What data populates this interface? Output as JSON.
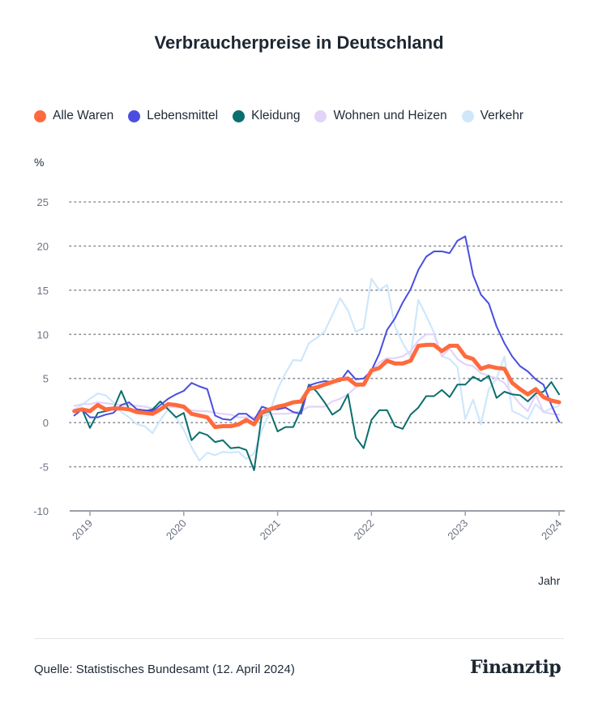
{
  "chart_data": {
    "type": "line",
    "title": "Verbraucherpreise in Deutschland",
    "ylabel": "%",
    "xlabel": "Jahr",
    "ylim": [
      -10,
      25
    ],
    "yticks": [
      25,
      20,
      15,
      10,
      5,
      0,
      -5,
      -10
    ],
    "xticks": [
      "2019",
      "2020",
      "2021",
      "2022",
      "2023",
      "2024"
    ],
    "grid": true,
    "legend_position": "top",
    "x": [
      "2018-11",
      "2018-12",
      "2019-01",
      "2019-02",
      "2019-03",
      "2019-04",
      "2019-05",
      "2019-06",
      "2019-07",
      "2019-08",
      "2019-09",
      "2019-10",
      "2019-11",
      "2019-12",
      "2020-01",
      "2020-02",
      "2020-03",
      "2020-04",
      "2020-05",
      "2020-06",
      "2020-07",
      "2020-08",
      "2020-09",
      "2020-10",
      "2020-11",
      "2020-12",
      "2021-01",
      "2021-02",
      "2021-03",
      "2021-04",
      "2021-05",
      "2021-06",
      "2021-07",
      "2021-08",
      "2021-09",
      "2021-10",
      "2021-11",
      "2021-12",
      "2022-01",
      "2022-02",
      "2022-03",
      "2022-04",
      "2022-05",
      "2022-06",
      "2022-07",
      "2022-08",
      "2022-09",
      "2022-10",
      "2022-11",
      "2022-12",
      "2023-01",
      "2023-02",
      "2023-03",
      "2023-04",
      "2023-05",
      "2023-06",
      "2023-07",
      "2023-08",
      "2023-09",
      "2023-10",
      "2023-11",
      "2023-12",
      "2024-01"
    ],
    "series": [
      {
        "name": "Verkehr",
        "color": "#cfe7fb",
        "width": 2.2,
        "values": [
          1.5,
          2.0,
          2.7,
          3.3,
          3.1,
          2.3,
          1.2,
          0.6,
          -0.2,
          -0.4,
          -1.2,
          0.3,
          1.5,
          0.6,
          -0.8,
          -2.8,
          -4.3,
          -3.4,
          -3.7,
          -3.3,
          -3.4,
          -3.3,
          -4.1,
          -3.5,
          -0.8,
          1.2,
          3.8,
          5.6,
          7.1,
          7.0,
          9.0,
          9.6,
          10.3,
          12.2,
          14.1,
          12.7,
          10.3,
          10.7,
          16.3,
          15.0,
          15.6,
          10.9,
          9.0,
          7.5,
          13.9,
          12.1,
          10.2,
          7.5,
          7.2,
          6.3,
          0.4,
          2.6,
          -0.2,
          3.8,
          5.0,
          7.5,
          1.3,
          0.9,
          0.4,
          2.1,
          1.2,
          1.6,
          1.9
        ]
      },
      {
        "name": "Wohnen und Heizen",
        "color": "#e2d3fb",
        "width": 2.2,
        "values": [
          1.9,
          2.1,
          2.1,
          2.3,
          2.2,
          2.1,
          2.0,
          2.0,
          1.9,
          1.8,
          1.6,
          1.5,
          1.7,
          1.8,
          1.6,
          1.4,
          1.3,
          1.3,
          1.1,
          1.0,
          0.9,
          0.6,
          0.6,
          0.6,
          0.7,
          1.0,
          1.0,
          1.0,
          1.1,
          1.3,
          1.8,
          1.8,
          1.8,
          2.4,
          2.7,
          3.2,
          4.0,
          4.4,
          5.9,
          6.8,
          7.3,
          7.3,
          7.5,
          8.1,
          9.3,
          10.0,
          10.0,
          7.5,
          8.4,
          7.2,
          6.6,
          6.4,
          5.6,
          5.3,
          5.0,
          4.5,
          3.2,
          2.1,
          1.3,
          3.2,
          1.2,
          1.0,
          0.9
        ]
      },
      {
        "name": "Kleidung",
        "color": "#0b6e6e",
        "width": 2,
        "values": [
          1.3,
          1.5,
          -0.6,
          1.1,
          1.3,
          1.5,
          3.6,
          1.5,
          1.3,
          1.3,
          1.5,
          2.4,
          1.5,
          0.6,
          1.1,
          -2.0,
          -1.1,
          -1.4,
          -2.2,
          -2.0,
          -2.9,
          -2.8,
          -3.1,
          -5.4,
          1.0,
          1.3,
          -1.0,
          -0.5,
          -0.5,
          1.5,
          4.3,
          3.5,
          2.3,
          0.9,
          1.5,
          3.2,
          -1.7,
          -2.9,
          0.3,
          1.4,
          1.4,
          -0.4,
          -0.7,
          0.9,
          1.7,
          3.0,
          3.0,
          3.7,
          2.9,
          4.3,
          4.3,
          5.2,
          4.7,
          5.3,
          2.8,
          3.5,
          3.2,
          3.1,
          2.4,
          3.3,
          3.5,
          4.6,
          3.2
        ]
      },
      {
        "name": "Lebensmittel",
        "color": "#4a4ee0",
        "width": 2,
        "values": [
          0.8,
          1.5,
          0.6,
          0.6,
          0.9,
          1.1,
          2.0,
          2.3,
          1.5,
          1.4,
          1.3,
          2.0,
          2.7,
          3.2,
          3.6,
          4.5,
          4.1,
          3.8,
          0.8,
          0.4,
          0.3,
          1.0,
          1.0,
          0.3,
          1.8,
          1.5,
          1.5,
          1.7,
          1.2,
          1.0,
          4.2,
          4.5,
          4.7,
          4.6,
          4.7,
          5.9,
          4.9,
          5.0,
          5.9,
          7.8,
          10.5,
          11.8,
          13.6,
          15.1,
          17.3,
          18.8,
          19.4,
          19.4,
          19.2,
          20.6,
          21.1,
          16.7,
          14.5,
          13.5,
          10.9,
          9.0,
          7.5,
          6.4,
          5.8,
          4.9,
          4.3,
          2.0,
          0.1
        ]
      },
      {
        "name": "Alle Waren",
        "color": "#ff6a3d",
        "width": 5,
        "values": [
          1.3,
          1.5,
          1.3,
          2.0,
          1.5,
          1.6,
          1.6,
          1.5,
          1.2,
          1.1,
          1.0,
          1.5,
          2.1,
          2.0,
          1.8,
          1.0,
          0.8,
          0.6,
          -0.5,
          -0.4,
          -0.4,
          -0.2,
          0.3,
          -0.2,
          1.2,
          1.5,
          1.8,
          2.0,
          2.3,
          2.4,
          3.8,
          4.0,
          4.3,
          4.6,
          4.9,
          5.0,
          4.3,
          4.3,
          5.9,
          6.2,
          7.0,
          6.7,
          6.7,
          7.0,
          8.7,
          8.8,
          8.8,
          8.1,
          8.7,
          8.7,
          7.5,
          7.2,
          6.1,
          6.4,
          6.2,
          6.1,
          4.5,
          3.8,
          3.2,
          3.8,
          2.9,
          2.5,
          2.3
        ]
      }
    ],
    "legend": [
      {
        "label": "Alle Waren",
        "color": "#ff6a3d"
      },
      {
        "label": "Lebensmittel",
        "color": "#4a4ee0"
      },
      {
        "label": "Kleidung",
        "color": "#0b6e6e"
      },
      {
        "label": "Wohnen und Heizen",
        "color": "#e2d3fb"
      },
      {
        "label": "Verkehr",
        "color": "#cfe7fb"
      }
    ]
  },
  "footer": {
    "source": "Quelle: Statistisches Bundesamt (12. April 2024)",
    "logo": "Finanztip"
  }
}
